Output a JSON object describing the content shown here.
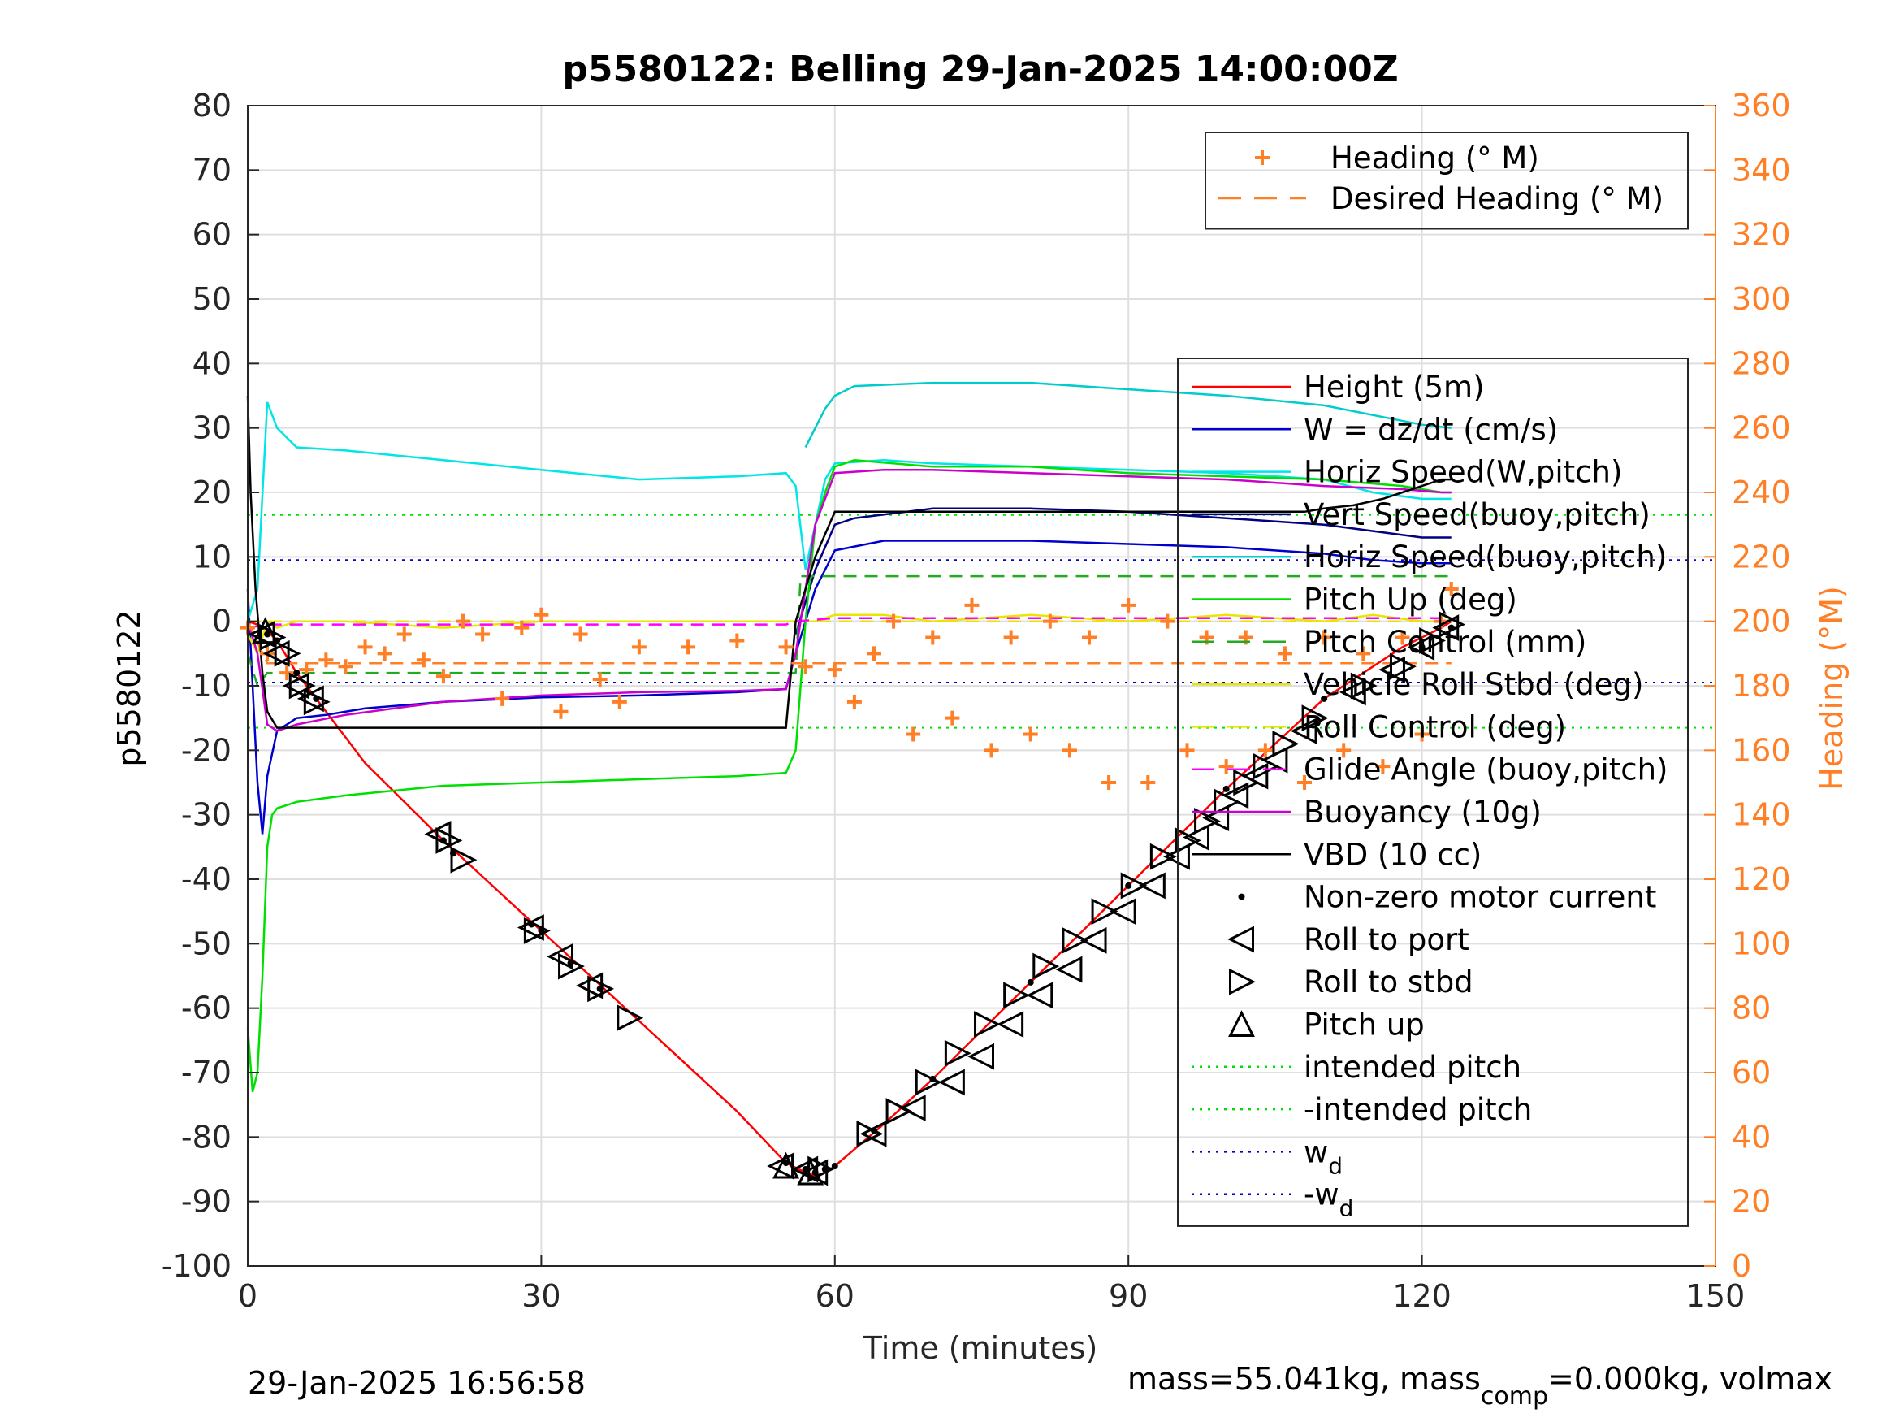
{
  "chart_data": {
    "type": "line",
    "title": "p5580122: Belling 29-Jan-2025 14:00:00Z",
    "xlabel": "Time (minutes)",
    "ylabel": "p5580122",
    "y2label": "Heading (°M)",
    "xlim": [
      0,
      150
    ],
    "ylim": [
      -100,
      80
    ],
    "y2lim": [
      0,
      360
    ],
    "xticks": [
      0,
      30,
      60,
      90,
      120,
      150
    ],
    "yticks": [
      80,
      70,
      60,
      50,
      40,
      30,
      20,
      10,
      0,
      -10,
      -20,
      -30,
      -40,
      -50,
      -60,
      -70,
      -80,
      -90,
      -100
    ],
    "y2ticks": [
      360,
      340,
      320,
      300,
      280,
      260,
      240,
      220,
      200,
      180,
      160,
      140,
      120,
      100,
      80,
      60,
      40,
      20,
      0
    ],
    "grid": true,
    "footer_left": "29-Jan-2025 16:56:58",
    "footer_right": {
      "a": "mass=55.041kg, mass",
      "sub": "comp",
      "b": "=0.000kg, volmax"
    },
    "legend_upper": [
      {
        "label": "Heading (° M)",
        "color": "#ff7f27",
        "style": "plus"
      },
      {
        "label": "Desired Heading (° M)",
        "color": "#ff7f27",
        "style": "dash"
      }
    ],
    "legend_lower": [
      {
        "label": "Height (5m)",
        "color": "#ff0000",
        "style": "solid"
      },
      {
        "label": "W = dz/dt (cm/s)",
        "color": "#0000cc",
        "style": "solid"
      },
      {
        "label": "Horiz Speed(W,pitch)",
        "color": "#00e5e5",
        "style": "solid"
      },
      {
        "label": "Vert Speed(buoy,pitch)",
        "color": "#000080",
        "style": "solid"
      },
      {
        "label": "Horiz Speed(buoy,pitch)",
        "color": "#00cccc",
        "style": "solid"
      },
      {
        "label": "Pitch Up (deg)",
        "color": "#00e000",
        "style": "solid"
      },
      {
        "label": "Pitch Control (mm)",
        "color": "#22aa22",
        "style": "dash"
      },
      {
        "label": "Vehicle Roll Stbd (deg)",
        "color": "#e6e600",
        "style": "solid"
      },
      {
        "label": "Roll Control (deg)",
        "color": "#e6e600",
        "style": "dash"
      },
      {
        "label": "Glide Angle (buoy,pitch)",
        "color": "#ff00ff",
        "style": "dash"
      },
      {
        "label": "Buoyancy (10g)",
        "color": "#cc00cc",
        "style": "solid"
      },
      {
        "label": "VBD (10 cc)",
        "color": "#000000",
        "style": "solid"
      },
      {
        "label": "Non-zero motor current",
        "color": "#000000",
        "style": "dot"
      },
      {
        "label": "Roll to port",
        "color": "#000000",
        "style": "tri-left"
      },
      {
        "label": "Roll to stbd",
        "color": "#000000",
        "style": "tri-right"
      },
      {
        "label": "Pitch up",
        "color": "#000000",
        "style": "tri-up"
      },
      {
        "label": "intended pitch",
        "color": "#00e000",
        "style": "dotted"
      },
      {
        "label": "-intended pitch",
        "color": "#00e000",
        "style": "dotted"
      },
      {
        "label": "w",
        "sub": "d",
        "color": "#0000cc",
        "style": "dotted"
      },
      {
        "label": "-w",
        "sub": "d",
        "color": "#0000cc",
        "style": "dotted"
      }
    ],
    "series": [
      {
        "name": "Height (5m)",
        "color": "#ff0000",
        "x": [
          0,
          1,
          2,
          3,
          5,
          8,
          12,
          20,
          30,
          40,
          50,
          55,
          57,
          58,
          59,
          60,
          65,
          70,
          80,
          90,
          100,
          110,
          118,
          122,
          123
        ],
        "y": [
          0,
          -0.5,
          -1.5,
          -3,
          -8,
          -14,
          -22,
          -34,
          -48,
          -62,
          -76,
          -84,
          -85.5,
          -86,
          -85.5,
          -84.5,
          -78,
          -71,
          -56,
          -41,
          -26,
          -12,
          -4,
          -1,
          0
        ]
      },
      {
        "name": "W = dz/dt (cm/s)",
        "color": "#0000cc",
        "x": [
          0,
          1,
          1.5,
          2,
          3,
          5,
          8,
          12,
          20,
          30,
          40,
          50,
          55,
          56,
          58,
          60,
          65,
          70,
          80,
          90,
          100,
          110,
          115,
          120,
          123
        ],
        "y": [
          5,
          -25,
          -33,
          -24,
          -17,
          -15,
          -14.5,
          -13.5,
          -12.5,
          -11.8,
          -11.5,
          -11,
          -10.5,
          -5,
          5,
          11,
          12.5,
          12.5,
          12.5,
          12,
          11.5,
          10.5,
          9.5,
          9,
          9
        ]
      },
      {
        "name": "Horiz Speed(W,pitch)",
        "color": "#00e5e5",
        "x": [
          0,
          1,
          2,
          3,
          5,
          10,
          20,
          30,
          40,
          50,
          55,
          56,
          57,
          58,
          59,
          60,
          65,
          70,
          80,
          90,
          100,
          110,
          115,
          120,
          123
        ],
        "y": [
          0,
          5,
          34,
          30,
          27,
          26.5,
          25,
          23.5,
          22,
          22.5,
          23,
          21,
          8,
          15,
          22,
          24.5,
          25,
          24.5,
          24,
          23.5,
          23,
          22,
          20,
          19,
          19
        ]
      },
      {
        "name": "Vert Speed(buoy,pitch)",
        "color": "#000080",
        "x": [
          56,
          58,
          60,
          62,
          70,
          80,
          90,
          100,
          110,
          115,
          120,
          123
        ],
        "y": [
          -2,
          8,
          15,
          16,
          17.5,
          17.5,
          17,
          16,
          15,
          14,
          13,
          13
        ]
      },
      {
        "name": "Horiz Speed(buoy,pitch)",
        "color": "#00cccc",
        "x": [
          57,
          58,
          59,
          60,
          62,
          70,
          80,
          90,
          100,
          110,
          115,
          120,
          123
        ],
        "y": [
          27,
          30,
          33,
          35,
          36.5,
          37,
          37,
          36,
          35,
          33.5,
          32,
          30.5,
          30
        ]
      },
      {
        "name": "Pitch Up (deg)",
        "color": "#00e000",
        "x": [
          0,
          0.5,
          1,
          1.5,
          2,
          2.5,
          3,
          5,
          10,
          20,
          30,
          40,
          50,
          55,
          56,
          57,
          58,
          59,
          60,
          62,
          70,
          80,
          90,
          100,
          110,
          118,
          122,
          123
        ],
        "y": [
          -63,
          -73,
          -70,
          -55,
          -35,
          -30,
          -29,
          -28,
          -27,
          -25.5,
          -25,
          -24.5,
          -24,
          -23.5,
          -20,
          0,
          15,
          20,
          24,
          25,
          24,
          24,
          23,
          22.5,
          22,
          21,
          20,
          20
        ]
      },
      {
        "name": "Pitch Control (mm)",
        "color": "#22aa22",
        "x": [
          0,
          1,
          2,
          55,
          56,
          56.5,
          120,
          123
        ],
        "y": [
          -5,
          -10,
          -8,
          -8,
          -8,
          7,
          7,
          7
        ]
      },
      {
        "name": "Vehicle Roll Stbd (deg)",
        "color": "#e6e600",
        "x": [
          0,
          1,
          2,
          3,
          5,
          10,
          20,
          30,
          40,
          50,
          55,
          56,
          58,
          60,
          65,
          70,
          80,
          90,
          100,
          110,
          115,
          120,
          123
        ],
        "y": [
          -2,
          -5,
          0,
          -1,
          0,
          0,
          -1,
          0,
          0,
          0,
          0,
          0,
          0,
          1,
          1,
          0,
          1,
          0,
          1,
          0,
          1,
          0,
          0
        ]
      },
      {
        "name": "Roll Control (deg)",
        "color": "#e6e600",
        "x": [
          0,
          1,
          2,
          10,
          20,
          30,
          40,
          50,
          55,
          56,
          60,
          70,
          80,
          90,
          100,
          110,
          120,
          123
        ],
        "y": [
          0,
          0,
          0,
          0,
          0,
          0,
          0,
          0,
          0,
          0,
          0,
          0,
          0,
          0,
          0,
          0,
          0,
          0
        ]
      },
      {
        "name": "Glide Angle (buoy,pitch)",
        "color": "#ff00ff",
        "x": [
          0,
          2,
          10,
          20,
          30,
          40,
          50,
          55,
          56,
          60,
          70,
          80,
          90,
          100,
          110,
          120,
          123
        ],
        "y": [
          -1,
          -0.5,
          -0.5,
          -0.5,
          -0.5,
          -0.5,
          -0.5,
          -0.5,
          0,
          0.5,
          0.5,
          0.5,
          0.5,
          0.5,
          0.5,
          0.5,
          0.5
        ]
      },
      {
        "name": "Buoyancy (10g)",
        "color": "#cc00cc",
        "x": [
          0,
          1,
          2,
          3,
          5,
          10,
          20,
          30,
          40,
          50,
          55,
          56,
          58,
          60,
          65,
          70,
          80,
          90,
          100,
          110,
          118,
          122,
          123
        ],
        "y": [
          0,
          -5,
          -16,
          -17,
          -16,
          -14.5,
          -12.5,
          -11.5,
          -11,
          -10.8,
          -10.5,
          -5,
          15,
          23,
          23.5,
          23.5,
          23,
          22.5,
          22,
          21,
          20.5,
          20,
          20
        ]
      },
      {
        "name": "VBD (10 cc)",
        "color": "#000000",
        "x": [
          0,
          0.3,
          0.8,
          1.5,
          2,
          3,
          5,
          10,
          20,
          30,
          40,
          50,
          55,
          56,
          58,
          60,
          62,
          70,
          80,
          90,
          100,
          108,
          110,
          113,
          116,
          118,
          120,
          122,
          123
        ],
        "y": [
          35,
          20,
          5,
          -8,
          -14,
          -16.5,
          -16.5,
          -16.5,
          -16.5,
          -16.5,
          -16.5,
          -16.5,
          -16.5,
          0,
          10,
          17,
          17,
          17,
          17,
          17,
          17,
          17,
          17.5,
          18,
          19,
          20,
          21,
          22,
          22
        ]
      },
      {
        "name": "Heading (° M)",
        "color": "#ff7f27",
        "axis": "right",
        "x": [
          0,
          2,
          4,
          6,
          8,
          10,
          12,
          14,
          16,
          18,
          20,
          22,
          24,
          26,
          28,
          30,
          32,
          34,
          36,
          38,
          40,
          45,
          50,
          55,
          57,
          60,
          62,
          64,
          66,
          68,
          70,
          72,
          74,
          76,
          78,
          80,
          82,
          84,
          86,
          88,
          90,
          92,
          94,
          96,
          98,
          100,
          102,
          104,
          106,
          108,
          110,
          112,
          114,
          116,
          118,
          120,
          122,
          123
        ],
        "y": [
          198,
          190,
          184,
          185,
          188,
          186,
          192,
          190,
          196,
          188,
          183,
          200,
          196,
          176,
          198,
          202,
          172,
          196,
          182,
          175,
          192,
          192,
          194,
          192,
          186,
          185,
          175,
          190,
          200,
          165,
          195,
          170,
          205,
          160,
          195,
          165,
          200,
          160,
          195,
          150,
          205,
          150,
          200,
          160,
          195,
          155,
          195,
          160,
          190,
          150,
          195,
          160,
          190,
          155,
          195,
          165,
          200,
          210
        ]
      },
      {
        "name": "Desired Heading (° M)",
        "color": "#ff7f27",
        "axis": "right",
        "x": [
          0,
          2,
          55,
          56,
          123
        ],
        "y": [
          200,
          187,
          187,
          187,
          187
        ]
      }
    ],
    "markers": {
      "roll_to_port": {
        "x": [
          1.5,
          3,
          5,
          6.5,
          19.5,
          29,
          32,
          35,
          54.5,
          57,
          58,
          64,
          68,
          72,
          75,
          78,
          81,
          84,
          86.5,
          89.5,
          92.5,
          95,
          97,
          99,
          101,
          103,
          105,
          108,
          113,
          117,
          120,
          122.5
        ],
        "y": [
          -2,
          -5,
          -10,
          -12,
          -33,
          -47.5,
          -52,
          -56.5,
          -84.5,
          -85,
          -85.5,
          -79.5,
          -75.5,
          -71.5,
          -67.5,
          -62.5,
          -58,
          -54,
          -49.5,
          -45,
          -41,
          -36.5,
          -33.5,
          -30.5,
          -27,
          -24,
          -21.5,
          -17,
          -11,
          -7.5,
          -4,
          -1
        ]
      },
      "roll_to_stbd": {
        "x": [
          2.5,
          4,
          5.5,
          7,
          20.5,
          22,
          29.5,
          33,
          36,
          39,
          58.5,
          63.5,
          66.5,
          69.5,
          72.5,
          75.5,
          78.5,
          81.5,
          84.5,
          87.5,
          90.5,
          93.5,
          96,
          98,
          100,
          102,
          104,
          106,
          109,
          114,
          118,
          121,
          123
        ],
        "y": [
          -2.5,
          -5,
          -10,
          -12.5,
          -34,
          -37,
          -48,
          -53.5,
          -57,
          -61.5,
          -85,
          -79.5,
          -76,
          -71.5,
          -67,
          -62.5,
          -58,
          -53.5,
          -49.5,
          -45,
          -41,
          -36.5,
          -34,
          -31,
          -28,
          -25,
          -22.5,
          -19,
          -15,
          -10,
          -7,
          -3,
          -0.5
        ]
      },
      "pitch_up": {
        "x": [
          1.8,
          55,
          57.5
        ],
        "y": [
          -1.5,
          -84.5,
          -85.5
        ]
      },
      "motor_current": {
        "x": [
          2,
          3,
          5,
          7,
          20,
          21,
          29,
          30,
          33,
          36,
          55,
          57,
          58,
          59,
          60,
          64,
          70,
          80,
          90,
          100,
          110,
          120,
          123
        ],
        "y": [
          -2,
          -3,
          -8,
          -12,
          -34,
          -36,
          -47,
          -48,
          -53,
          -57,
          -84,
          -85,
          -85.5,
          -85,
          -84.5,
          -79,
          -71,
          -56,
          -41,
          -26,
          -12,
          -4,
          -1
        ]
      }
    },
    "reference_lines": {
      "intended_pitch": 16.5,
      "neg_intended_pitch": -16.5,
      "w_d": 9.5,
      "neg_w_d": -9.5
    }
  }
}
